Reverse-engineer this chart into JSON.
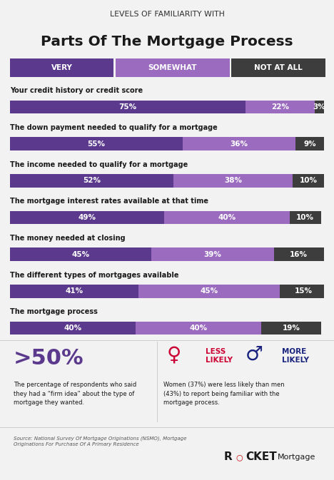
{
  "title_top": "LEVELS OF FAMILIARITY WITH",
  "title_main": "Parts Of The Mortgage Process",
  "bg_color": "#f2f2f2",
  "header_labels": [
    "VERY",
    "SOMEWHAT",
    "NOT AT ALL"
  ],
  "header_colors": [
    "#5b3a8e",
    "#9b6bbf",
    "#3d3d3d"
  ],
  "categories": [
    "Your credit history or credit score",
    "The down payment needed to qualify for a mortgage",
    "The income needed to qualify for a mortgage",
    "The mortgage interest rates available at that time",
    "The money needed at closing",
    "The different types of mortgages available",
    "The mortgage process"
  ],
  "very": [
    75,
    55,
    52,
    49,
    45,
    41,
    40
  ],
  "somewhat": [
    22,
    36,
    38,
    40,
    39,
    45,
    40
  ],
  "not_at_all": [
    3,
    9,
    10,
    10,
    16,
    15,
    19
  ],
  "color_very": "#5b3a8e",
  "color_somewhat": "#9b6bbf",
  "color_not_at_all": "#3d3d3d",
  "footnote_stat": ">50%",
  "footnote_desc": "The percentage of respondents who said\nthey had a “firm idea” about the type of\nmortgage they wanted.",
  "gender_less_label": "LESS\nLIKELY",
  "gender_more_label": "MORE\nLIKELY",
  "gender_desc": "Women (37%) were less likely than men\n(43%) to report being familiar with the\nmortgage process.",
  "gender_desc_bold1": "less likely",
  "gender_desc_bold2": "familiar",
  "source_text": "Source: National Survey Of Mortgage Originations (NSMO), Mortgage\nOriginations For Purchase Of A Primary Residence",
  "female_color": "#cc0033",
  "male_color": "#1a237e",
  "white": "#ffffff",
  "dark": "#1a1a1a",
  "gray": "#555555",
  "light_gray": "#cccccc"
}
